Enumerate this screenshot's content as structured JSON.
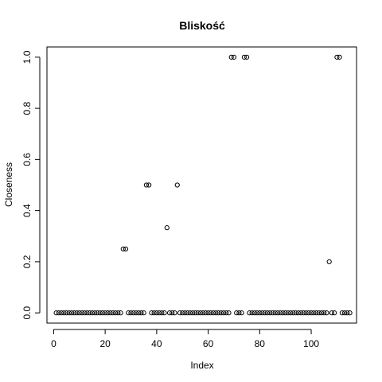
{
  "chart_data": {
    "type": "scatter",
    "title": "Bliskość",
    "xlabel": "Index",
    "ylabel": "Closeness",
    "xlim": [
      -2.6,
      117.6
    ],
    "ylim": [
      -0.04,
      1.04
    ],
    "xticks": [
      0,
      20,
      40,
      60,
      80,
      100
    ],
    "yticks": [
      0.0,
      0.2,
      0.4,
      0.6,
      0.8,
      1.0
    ],
    "ytick_labels": [
      "0.0",
      "0.2",
      "0.4",
      "0.6",
      "0.8",
      "1.0"
    ],
    "grid": false,
    "legend": "none",
    "point_style": "open-circle",
    "x": [
      1,
      2,
      3,
      4,
      5,
      6,
      7,
      8,
      9,
      10,
      11,
      12,
      13,
      14,
      15,
      16,
      17,
      18,
      19,
      20,
      21,
      22,
      23,
      24,
      25,
      26,
      27,
      28,
      29,
      30,
      31,
      32,
      33,
      34,
      35,
      36,
      37,
      38,
      39,
      40,
      41,
      42,
      43,
      44,
      45,
      46,
      47,
      48,
      49,
      50,
      51,
      52,
      53,
      54,
      55,
      56,
      57,
      58,
      59,
      60,
      61,
      62,
      63,
      64,
      65,
      66,
      67,
      68,
      69,
      70,
      71,
      72,
      73,
      74,
      75,
      76,
      77,
      78,
      79,
      80,
      81,
      82,
      83,
      84,
      85,
      86,
      87,
      88,
      89,
      90,
      91,
      92,
      93,
      94,
      95,
      96,
      97,
      98,
      99,
      100,
      101,
      102,
      103,
      104,
      105,
      106,
      107,
      108,
      109,
      110,
      111,
      112,
      113,
      114,
      115
    ],
    "y": [
      0,
      0,
      0,
      0,
      0,
      0,
      0,
      0,
      0,
      0,
      0,
      0,
      0,
      0,
      0,
      0,
      0,
      0,
      0,
      0,
      0,
      0,
      0,
      0,
      0,
      0,
      0.25,
      0.25,
      0,
      0,
      0,
      0,
      0,
      0,
      0,
      0.5,
      0.5,
      0,
      0,
      0,
      0,
      0,
      0,
      0.333,
      0,
      0,
      0,
      0.5,
      0,
      0,
      0,
      0,
      0,
      0,
      0,
      0,
      0,
      0,
      0,
      0,
      0,
      0,
      0,
      0,
      0,
      0,
      0,
      0,
      1,
      1,
      0,
      0,
      0,
      1,
      1,
      0,
      0,
      0,
      0,
      0,
      0,
      0,
      0,
      0,
      0,
      0,
      0,
      0,
      0,
      0,
      0,
      0,
      0,
      0,
      0,
      0,
      0,
      0,
      0,
      0,
      0,
      0,
      0,
      0,
      0,
      0,
      0.2,
      0,
      0,
      1,
      1,
      0,
      0,
      0,
      0
    ]
  }
}
